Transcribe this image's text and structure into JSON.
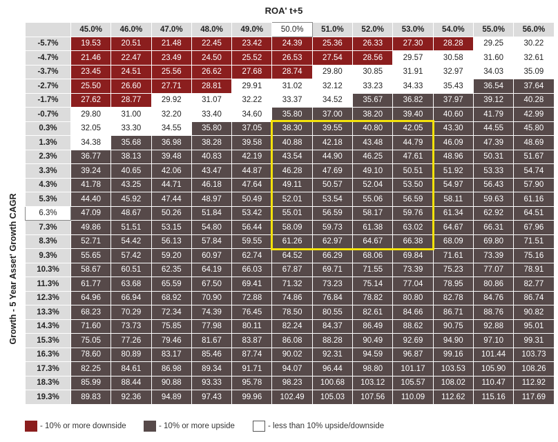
{
  "chart_data": {
    "type": "table",
    "title": "ROA' t+5",
    "ylabel": "Growth - 5 Year Asset' Growth CAGR",
    "selected_column": "50.0%",
    "selected_row": "6.3%",
    "columns": [
      "45.0%",
      "46.0%",
      "47.0%",
      "48.0%",
      "49.0%",
      "50.0%",
      "51.0%",
      "52.0%",
      "53.0%",
      "54.0%",
      "55.0%",
      "56.0%"
    ],
    "rows": [
      "-5.7%",
      "-4.7%",
      "-3.7%",
      "-2.7%",
      "-1.7%",
      "-0.7%",
      "0.3%",
      "1.3%",
      "2.3%",
      "3.3%",
      "4.3%",
      "5.3%",
      "6.3%",
      "7.3%",
      "8.3%",
      "9.3%",
      "10.3%",
      "11.3%",
      "12.3%",
      "13.3%",
      "14.3%",
      "15.3%",
      "16.3%",
      "17.3%",
      "18.3%",
      "19.3%"
    ],
    "values": [
      [
        "19.53",
        "20.51",
        "21.48",
        "22.45",
        "23.42",
        "24.39",
        "25.36",
        "26.33",
        "27.30",
        "28.28",
        "29.25",
        "30.22"
      ],
      [
        "21.46",
        "22.47",
        "23.49",
        "24.50",
        "25.52",
        "26.53",
        "27.54",
        "28.56",
        "29.57",
        "30.58",
        "31.60",
        "32.61"
      ],
      [
        "23.45",
        "24.51",
        "25.56",
        "26.62",
        "27.68",
        "28.74",
        "29.80",
        "30.85",
        "31.91",
        "32.97",
        "34.03",
        "35.09"
      ],
      [
        "25.50",
        "26.60",
        "27.71",
        "28.81",
        "29.91",
        "31.02",
        "32.12",
        "33.23",
        "34.33",
        "35.43",
        "36.54",
        "37.64"
      ],
      [
        "27.62",
        "28.77",
        "29.92",
        "31.07",
        "32.22",
        "33.37",
        "34.52",
        "35.67",
        "36.82",
        "37.97",
        "39.12",
        "40.28"
      ],
      [
        "29.80",
        "31.00",
        "32.20",
        "33.40",
        "34.60",
        "35.80",
        "37.00",
        "38.20",
        "39.40",
        "40.60",
        "41.79",
        "42.99"
      ],
      [
        "32.05",
        "33.30",
        "34.55",
        "35.80",
        "37.05",
        "38.30",
        "39.55",
        "40.80",
        "42.05",
        "43.30",
        "44.55",
        "45.80"
      ],
      [
        "34.38",
        "35.68",
        "36.98",
        "38.28",
        "39.58",
        "40.88",
        "42.18",
        "43.48",
        "44.79",
        "46.09",
        "47.39",
        "48.69"
      ],
      [
        "36.77",
        "38.13",
        "39.48",
        "40.83",
        "42.19",
        "43.54",
        "44.90",
        "46.25",
        "47.61",
        "48.96",
        "50.31",
        "51.67"
      ],
      [
        "39.24",
        "40.65",
        "42.06",
        "43.47",
        "44.87",
        "46.28",
        "47.69",
        "49.10",
        "50.51",
        "51.92",
        "53.33",
        "54.74"
      ],
      [
        "41.78",
        "43.25",
        "44.71",
        "46.18",
        "47.64",
        "49.11",
        "50.57",
        "52.04",
        "53.50",
        "54.97",
        "56.43",
        "57.90"
      ],
      [
        "44.40",
        "45.92",
        "47.44",
        "48.97",
        "50.49",
        "52.01",
        "53.54",
        "55.06",
        "56.59",
        "58.11",
        "59.63",
        "61.16"
      ],
      [
        "47.09",
        "48.67",
        "50.26",
        "51.84",
        "53.42",
        "55.01",
        "56.59",
        "58.17",
        "59.76",
        "61.34",
        "62.92",
        "64.51"
      ],
      [
        "49.86",
        "51.51",
        "53.15",
        "54.80",
        "56.44",
        "58.09",
        "59.73",
        "61.38",
        "63.02",
        "64.67",
        "66.31",
        "67.96"
      ],
      [
        "52.71",
        "54.42",
        "56.13",
        "57.84",
        "59.55",
        "61.26",
        "62.97",
        "64.67",
        "66.38",
        "68.09",
        "69.80",
        "71.51"
      ],
      [
        "55.65",
        "57.42",
        "59.20",
        "60.97",
        "62.74",
        "64.52",
        "66.29",
        "68.06",
        "69.84",
        "71.61",
        "73.39",
        "75.16"
      ],
      [
        "58.67",
        "60.51",
        "62.35",
        "64.19",
        "66.03",
        "67.87",
        "69.71",
        "71.55",
        "73.39",
        "75.23",
        "77.07",
        "78.91"
      ],
      [
        "61.77",
        "63.68",
        "65.59",
        "67.50",
        "69.41",
        "71.32",
        "73.23",
        "75.14",
        "77.04",
        "78.95",
        "80.86",
        "82.77"
      ],
      [
        "64.96",
        "66.94",
        "68.92",
        "70.90",
        "72.88",
        "74.86",
        "76.84",
        "78.82",
        "80.80",
        "82.78",
        "84.76",
        "86.74"
      ],
      [
        "68.23",
        "70.29",
        "72.34",
        "74.39",
        "76.45",
        "78.50",
        "80.55",
        "82.61",
        "84.66",
        "86.71",
        "88.76",
        "90.82"
      ],
      [
        "71.60",
        "73.73",
        "75.85",
        "77.98",
        "80.11",
        "82.24",
        "84.37",
        "86.49",
        "88.62",
        "90.75",
        "92.88",
        "95.01"
      ],
      [
        "75.05",
        "77.26",
        "79.46",
        "81.67",
        "83.87",
        "86.08",
        "88.28",
        "90.49",
        "92.69",
        "94.90",
        "97.10",
        "99.31"
      ],
      [
        "78.60",
        "80.89",
        "83.17",
        "85.46",
        "87.74",
        "90.02",
        "92.31",
        "94.59",
        "96.87",
        "99.16",
        "101.44",
        "103.73"
      ],
      [
        "82.25",
        "84.61",
        "86.98",
        "89.34",
        "91.71",
        "94.07",
        "96.44",
        "98.80",
        "101.17",
        "103.53",
        "105.90",
        "108.26"
      ],
      [
        "85.99",
        "88.44",
        "90.88",
        "93.33",
        "95.78",
        "98.23",
        "100.68",
        "103.12",
        "105.57",
        "108.02",
        "110.47",
        "112.92"
      ],
      [
        "89.83",
        "92.36",
        "94.89",
        "97.43",
        "99.96",
        "102.49",
        "105.03",
        "107.56",
        "110.09",
        "112.62",
        "115.16",
        "117.69"
      ]
    ],
    "categories_map": [
      "DDDDDDDDDDNN",
      "DDDDDDDDNNNN",
      "DDDDDDNNNNNN",
      "DDDDNNNNNNUU",
      "DDNNNNNUUUUU",
      "NNNNNUUUUUUU",
      "NNNUUUUUUUUU",
      "NUUUUUUUUUUU",
      "UUUUUUUUUUUU",
      "UUUUUUUUUUUU",
      "UUUUUUUUUUUU",
      "UUUUUUUUUUUU",
      "UUUUUUUUUUUU",
      "UUUUUUUUUUUU",
      "UUUUUUUUUUUU",
      "UUUUUUUUUUUU",
      "UUUUUUUUUUUU",
      "UUUUUUUUUUUU",
      "UUUUUUUUUUUU",
      "UUUUUUUUUUUU",
      "UUUUUUUUUUUU",
      "UUUUUUUUUUUU",
      "UUUUUUUUUUUU",
      "UUUUUUUUUUUU",
      "UUUUUUUUUUUU",
      "UUUUUUUUUUUU"
    ],
    "highlight": {
      "row_from": "0.3%",
      "row_to": "8.3%",
      "col_from": "50.0%",
      "col_to": "53.0%",
      "color": "#f5e30a"
    },
    "colors": {
      "down": "#8b1e1e",
      "up": "#564949",
      "neutral": "#ffffff",
      "header": "#dcdcdc"
    },
    "legend": [
      {
        "key": "down",
        "label": "- 10% or more downside",
        "color": "#8b1e1e"
      },
      {
        "key": "up",
        "label": "- 10% or more upside",
        "color": "#564949"
      },
      {
        "key": "neutral",
        "label": "- less than 10% upside/downside",
        "color": "#ffffff"
      }
    ]
  }
}
